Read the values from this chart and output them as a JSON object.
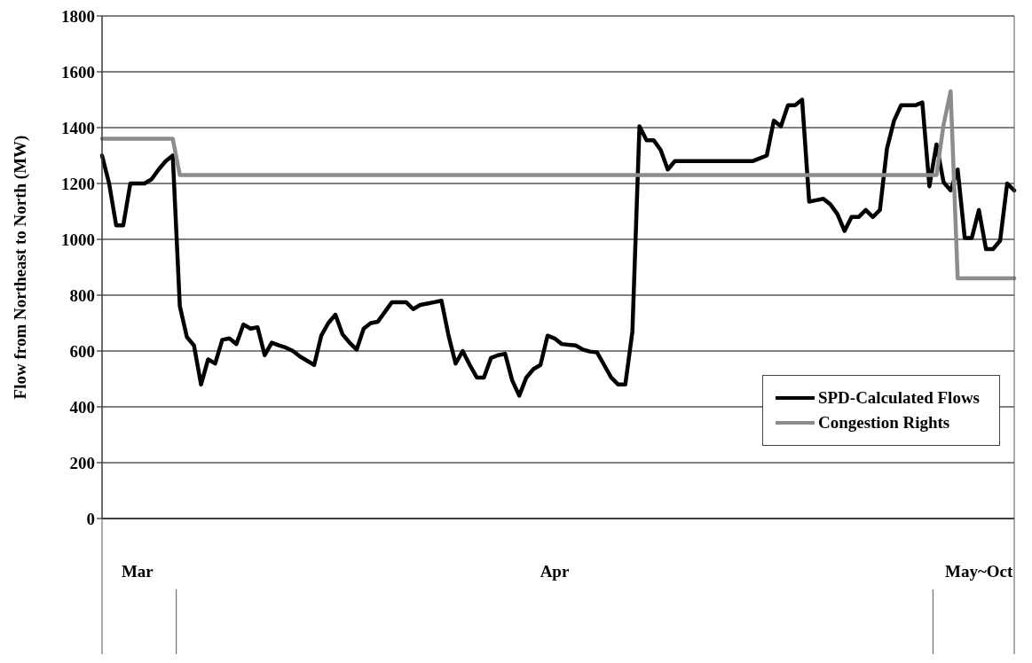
{
  "chart_data": {
    "type": "line",
    "ylabel": "Flow from Northeast to North (MW)",
    "categories": [
      null,
      null,
      null,
      null,
      null,
      "Mar",
      null,
      null,
      null,
      null,
      null,
      null,
      null,
      null,
      null,
      null,
      null,
      null,
      null,
      null,
      null,
      null,
      null,
      null,
      null,
      null,
      null,
      null,
      null,
      null,
      null,
      null,
      null,
      null,
      null,
      null,
      null,
      null,
      null,
      null,
      null,
      null,
      null,
      null,
      null,
      null,
      null,
      null,
      null,
      null,
      null,
      null,
      null,
      null,
      null,
      null,
      null,
      null,
      null,
      null,
      null,
      null,
      null,
      null,
      "Apr",
      null,
      null,
      null,
      null,
      null,
      null,
      null,
      null,
      null,
      null,
      null,
      null,
      null,
      null,
      null,
      null,
      null,
      null,
      null,
      null,
      null,
      null,
      null,
      null,
      null,
      null,
      null,
      null,
      null,
      null,
      null,
      null,
      null,
      null,
      null,
      null,
      null,
      null,
      null,
      null,
      null,
      null,
      null,
      null,
      null,
      null,
      null,
      null,
      null,
      null,
      null,
      null,
      null,
      null,
      null,
      null,
      null,
      null,
      null,
      "May~Oct",
      null,
      null,
      null,
      null,
      null
    ],
    "ylim": [
      0,
      1800
    ],
    "yticks": [
      0,
      200,
      400,
      600,
      800,
      1000,
      1200,
      1400,
      1600,
      1800
    ],
    "grid": "y",
    "legend": "right",
    "series": [
      {
        "name": "SPD-Calculated Flows",
        "color": "#000000",
        "values": [
          1300,
          1200,
          1050,
          1050,
          1200,
          1200,
          1200,
          1215,
          1250,
          1280,
          1300,
          760,
          650,
          620,
          480,
          570,
          555,
          640,
          645,
          625,
          695,
          680,
          685,
          585,
          630,
          620,
          612,
          600,
          580,
          565,
          550,
          655,
          700,
          730,
          660,
          630,
          605,
          680,
          700,
          705,
          740,
          775,
          775,
          775,
          750,
          765,
          770,
          775,
          780,
          655,
          555,
          600,
          550,
          505,
          505,
          575,
          585,
          590,
          495,
          440,
          505,
          535,
          550,
          655,
          645,
          625,
          622,
          620,
          605,
          598,
          595,
          550,
          505,
          480,
          480,
          670,
          1405,
          1355,
          1355,
          1320,
          1250,
          1280,
          1280,
          1280,
          1280,
          1280,
          1280,
          1280,
          1280,
          1280,
          1280,
          1280,
          1280,
          1290,
          1300,
          1425,
          1405,
          1480,
          1480,
          1500,
          1135,
          1140,
          1145,
          1125,
          1090,
          1030,
          1080,
          1080,
          1105,
          1080,
          1105,
          1325,
          1425,
          1480,
          1480,
          1480,
          1490,
          1190,
          1340,
          1205,
          1175,
          1250,
          1005,
          1005,
          1105,
          965,
          965,
          995,
          1200,
          1175
        ]
      },
      {
        "name": "Congestion Rights",
        "color": "#8c8c8c",
        "values": [
          1360,
          1360,
          1360,
          1360,
          1360,
          1360,
          1360,
          1360,
          1360,
          1360,
          1360,
          1230,
          1230,
          1230,
          1230,
          1230,
          1230,
          1230,
          1230,
          1230,
          1230,
          1230,
          1230,
          1230,
          1230,
          1230,
          1230,
          1230,
          1230,
          1230,
          1230,
          1230,
          1230,
          1230,
          1230,
          1230,
          1230,
          1230,
          1230,
          1230,
          1230,
          1230,
          1230,
          1230,
          1230,
          1230,
          1230,
          1230,
          1230,
          1230,
          1230,
          1230,
          1230,
          1230,
          1230,
          1230,
          1230,
          1230,
          1230,
          1230,
          1230,
          1230,
          1230,
          1230,
          1230,
          1230,
          1230,
          1230,
          1230,
          1230,
          1230,
          1230,
          1230,
          1230,
          1230,
          1230,
          1230,
          1230,
          1230,
          1230,
          1230,
          1230,
          1230,
          1230,
          1230,
          1230,
          1230,
          1230,
          1230,
          1230,
          1230,
          1230,
          1230,
          1230,
          1230,
          1230,
          1230,
          1230,
          1230,
          1230,
          1230,
          1230,
          1230,
          1230,
          1230,
          1230,
          1230,
          1230,
          1230,
          1230,
          1230,
          1230,
          1230,
          1230,
          1230,
          1230,
          1230,
          1230,
          1230,
          1410,
          1530,
          860,
          860,
          860,
          860,
          860,
          860,
          860,
          860,
          860
        ]
      }
    ]
  }
}
